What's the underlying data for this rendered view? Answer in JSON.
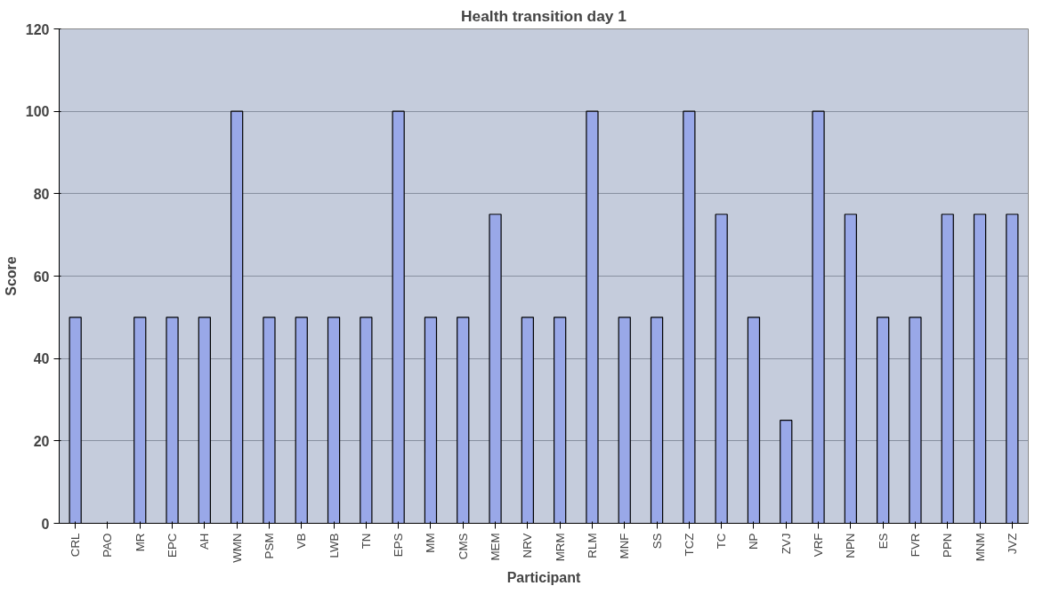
{
  "chart_data": {
    "type": "bar",
    "title": "Health transition day 1",
    "xlabel": "Participant",
    "ylabel": "Score",
    "categories": [
      "CRL",
      "PAO",
      "MR",
      "EPC",
      "AH",
      "WMN",
      "PSM",
      "VB",
      "LWB",
      "TN",
      "EPS",
      "MM",
      "CMS",
      "MEM",
      "NRV",
      "MRM",
      "RLM",
      "MNF",
      "SS",
      "TCZ",
      "TC",
      "NP",
      "ZVJ",
      "VRF",
      "NPN",
      "ES",
      "FVR",
      "PPN",
      "MNM",
      "JVZ"
    ],
    "values": [
      50,
      null,
      50,
      50,
      50,
      100,
      50,
      50,
      50,
      50,
      100,
      50,
      50,
      75,
      50,
      50,
      100,
      50,
      50,
      100,
      75,
      50,
      25,
      100,
      75,
      50,
      50,
      75,
      75,
      75
    ],
    "color": "#99a8e8",
    "ylim": [
      0,
      120
    ],
    "yticks": [
      0,
      20,
      40,
      60,
      80,
      100,
      120
    ],
    "grid": "y"
  }
}
